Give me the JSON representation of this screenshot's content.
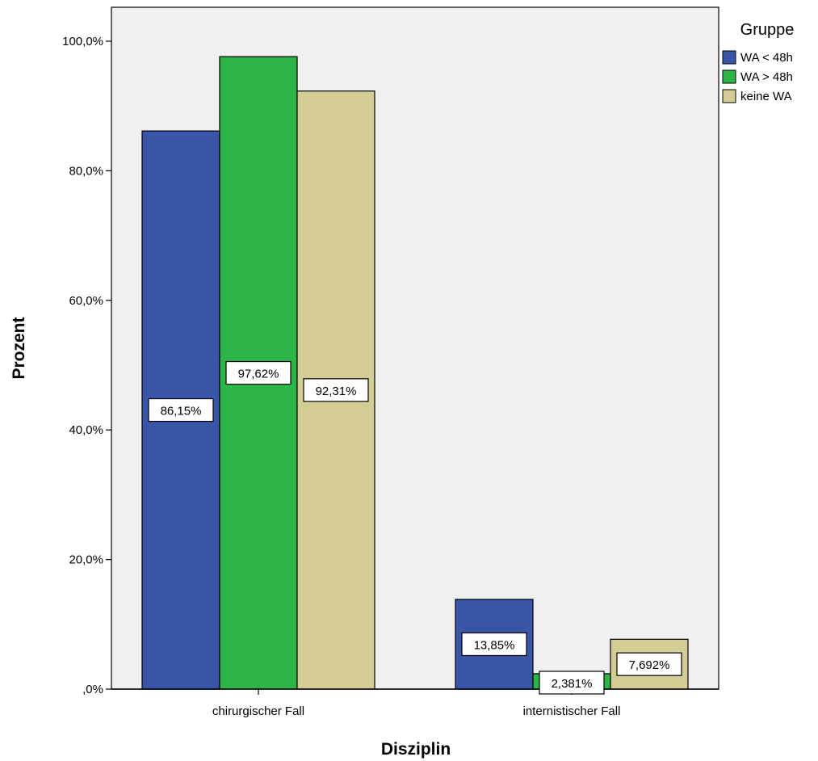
{
  "chart_data": {
    "type": "bar",
    "xlabel": "Disziplin",
    "ylabel": "Prozent",
    "ylim": [
      0,
      105
    ],
    "yticks": [
      {
        "value": 0,
        "label": ",0%"
      },
      {
        "value": 20,
        "label": "20,0%"
      },
      {
        "value": 40,
        "label": "40,0%"
      },
      {
        "value": 60,
        "label": "60,0%"
      },
      {
        "value": 80,
        "label": "80,0%"
      },
      {
        "value": 100,
        "label": "100,0%"
      }
    ],
    "categories": [
      "chirurgischer Fall",
      "internistischer Fall"
    ],
    "legend_title": "Gruppe",
    "legend_position": "top-right",
    "grid": false,
    "series": [
      {
        "name": "WA < 48h",
        "color": "#3a55a8",
        "values": [
          86.15,
          13.85
        ],
        "labels": [
          "86,15%",
          "13,85%"
        ]
      },
      {
        "name": "WA > 48h",
        "color": "#2db548",
        "values": [
          97.62,
          2.381
        ],
        "labels": [
          "97,62%",
          "2,381%"
        ]
      },
      {
        "name": "keine WA",
        "color": "#d3cd95",
        "values": [
          92.31,
          7.692
        ],
        "labels": [
          "92,31%",
          "7,692%"
        ]
      }
    ],
    "plot_background": "#f0f0f0"
  }
}
